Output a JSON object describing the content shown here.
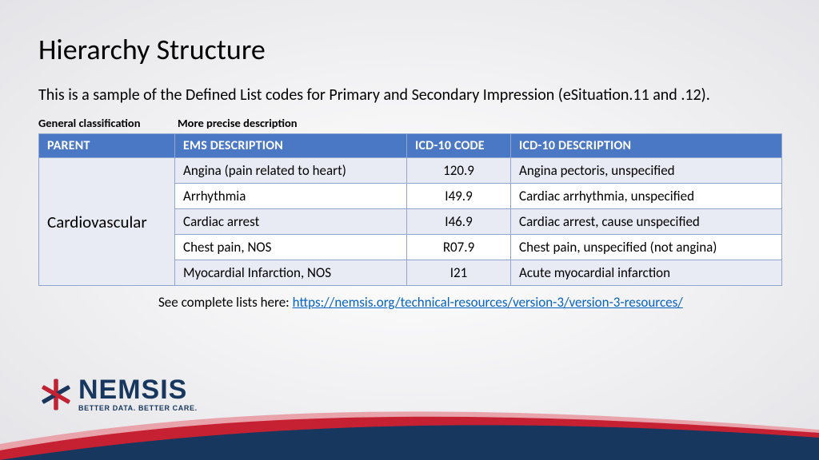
{
  "title": "Hierarchy Structure",
  "subtitle": "This is a sample of the Defined List codes for Primary and Secondary Impression (eSituation.11 and .12).",
  "hints": {
    "a": "General classification",
    "b": "More precise description"
  },
  "table": {
    "header_bg": "#4a78c4",
    "row_alt_bg": "#e8ebf4",
    "row_bg": "#ffffff",
    "border_color": "#90a6cf",
    "columns": [
      "PARENT",
      "EMS DESCRIPTION",
      "ICD-10 CODE",
      "ICD-10 DESCRIPTION"
    ],
    "parent": "Cardiovascular",
    "rows": [
      {
        "ems": "Angina (pain related to heart)",
        "code": "120.9",
        "desc": "Angina pectoris, unspecified"
      },
      {
        "ems": "Arrhythmia",
        "code": "I49.9",
        "desc": "Cardiac arrhythmia, unspecified"
      },
      {
        "ems": "Cardiac arrest",
        "code": "I46.9",
        "desc": "Cardiac arrest, cause unspecified"
      },
      {
        "ems": "Chest pain, NOS",
        "code": "R07.9",
        "desc": "Chest pain, unspecified (not angina)"
      },
      {
        "ems": "Myocardial Infarction, NOS",
        "code": "I21",
        "desc": "Acute myocardial infarction"
      }
    ]
  },
  "footnote_prefix": "See complete lists here: ",
  "footnote_link": "https://nemsis.org/technical-resources/version-3/version-3-resources/",
  "logo": {
    "word": "NEMSIS",
    "tag": "BETTER DATA. BETTER CARE.",
    "star_red": "#c62033",
    "star_blue": "#17375e"
  },
  "swoosh": {
    "red": "#c62033",
    "red_light": "#e9a3ab",
    "navy": "#17375e"
  }
}
